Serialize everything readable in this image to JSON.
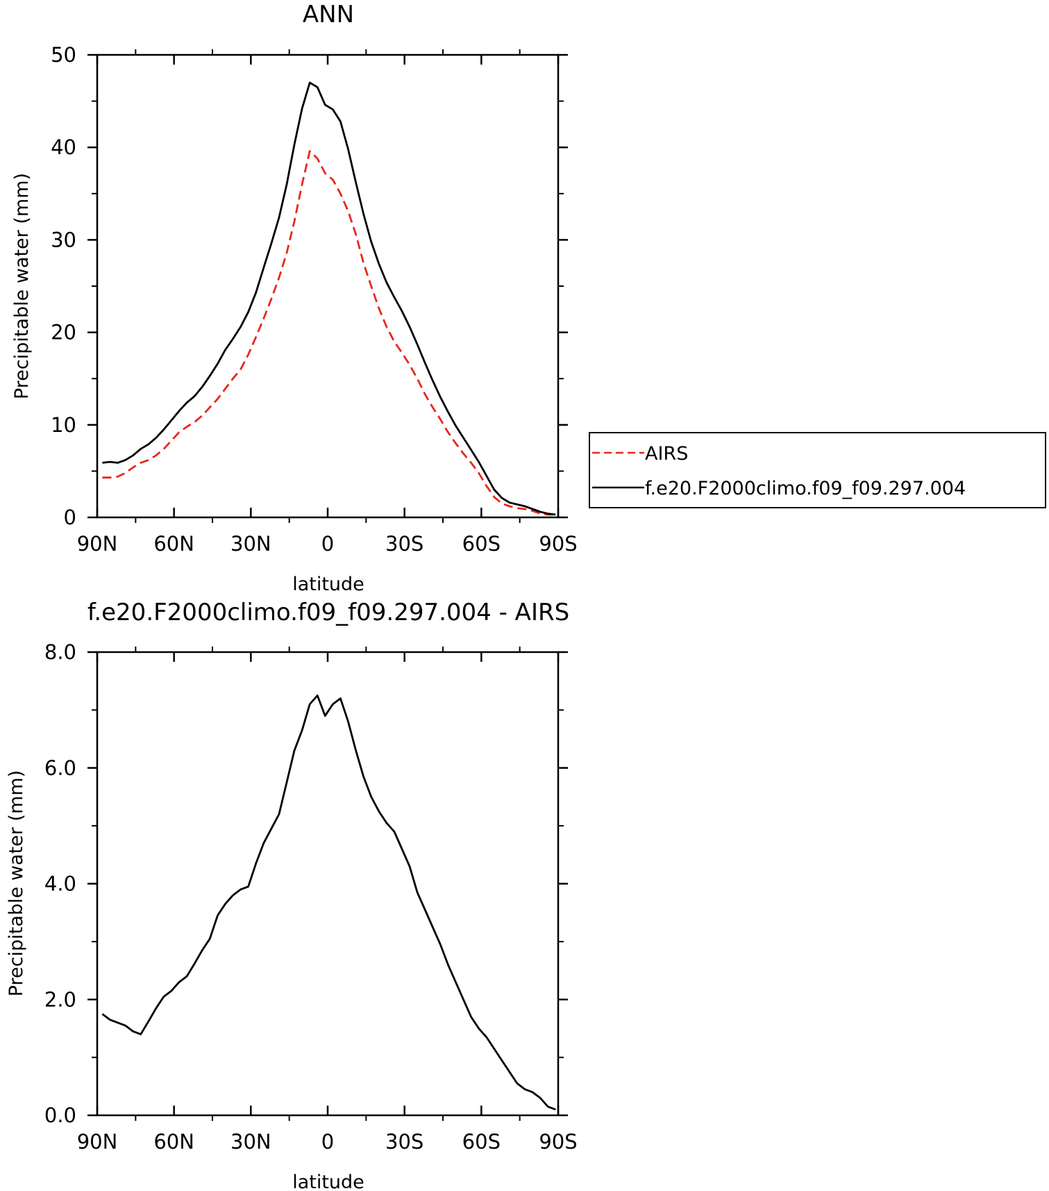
{
  "chart_data": [
    {
      "type": "line",
      "title": "ANN",
      "xlabel": "latitude",
      "ylabel": "Precipitable water (mm)",
      "xlim": [
        90,
        -90
      ],
      "ylim": [
        0,
        50
      ],
      "x_tick_values": [
        90,
        60,
        30,
        0,
        -30,
        -60,
        -90
      ],
      "x_tick_labels": [
        "90N",
        "60N",
        "30N",
        "0",
        "30S",
        "60S",
        "90S"
      ],
      "y_tick_values": [
        0,
        10,
        20,
        30,
        40,
        50
      ],
      "y_tick_labels": [
        "0",
        "10",
        "20",
        "30",
        "40",
        "50"
      ],
      "grid": false,
      "legend_position": "right",
      "x": [
        88,
        85,
        82,
        79,
        76,
        73,
        70,
        67,
        64,
        61,
        58,
        55,
        52,
        49,
        46,
        43,
        40,
        37,
        34,
        31,
        28,
        25,
        22,
        19,
        16,
        13,
        10,
        7,
        4,
        1,
        -2,
        -5,
        -8,
        -11,
        -14,
        -17,
        -20,
        -23,
        -26,
        -29,
        -32,
        -35,
        -38,
        -41,
        -44,
        -47,
        -50,
        -53,
        -56,
        -59,
        -62,
        -65,
        -68,
        -71,
        -74,
        -77,
        -80,
        -83,
        -86,
        -89
      ],
      "series": [
        {
          "name": "AIRS",
          "color": "#e8281e",
          "dash": "dashed",
          "values": [
            4.3,
            4.3,
            4.4,
            4.8,
            5.4,
            5.9,
            6.2,
            6.7,
            7.4,
            8.3,
            9.2,
            9.8,
            10.3,
            11.0,
            11.9,
            12.8,
            13.9,
            15.0,
            16.0,
            17.6,
            19.5,
            21.5,
            23.6,
            25.9,
            28.6,
            32.0,
            36.0,
            39.6,
            38.8,
            37.2,
            36.5,
            35.0,
            33.1,
            30.6,
            27.5,
            25.0,
            22.6,
            20.6,
            19.0,
            17.8,
            16.5,
            15.0,
            13.3,
            11.9,
            10.6,
            9.2,
            8.0,
            6.9,
            5.9,
            4.8,
            3.4,
            2.2,
            1.5,
            1.2,
            1.0,
            0.9,
            0.7,
            0.4,
            0.3,
            0.3
          ]
        },
        {
          "name": "f.e20.F2000climo.f09_f09.297.004",
          "color": "#000000",
          "dash": "solid",
          "values": [
            5.9,
            6.0,
            5.9,
            6.2,
            6.7,
            7.4,
            7.9,
            8.6,
            9.5,
            10.5,
            11.5,
            12.4,
            13.1,
            14.1,
            15.3,
            16.6,
            18.1,
            19.3,
            20.6,
            22.2,
            24.3,
            27.0,
            29.6,
            32.4,
            36.0,
            40.3,
            44.2,
            47.0,
            46.5,
            44.6,
            44.1,
            42.8,
            39.8,
            36.2,
            32.8,
            29.8,
            27.4,
            25.4,
            23.8,
            22.3,
            20.6,
            18.7,
            16.7,
            14.8,
            13.0,
            11.4,
            9.9,
            8.6,
            7.3,
            6.0,
            4.5,
            3.0,
            2.1,
            1.6,
            1.4,
            1.2,
            0.9,
            0.6,
            0.4,
            0.3
          ]
        }
      ]
    },
    {
      "type": "line",
      "title": "f.e20.F2000climo.f09_f09.297.004 - AIRS",
      "xlabel": "latitude",
      "ylabel": "Precipitable water (mm)",
      "xlim": [
        90,
        -90
      ],
      "ylim": [
        0,
        8
      ],
      "x_tick_values": [
        90,
        60,
        30,
        0,
        -30,
        -60,
        -90
      ],
      "x_tick_labels": [
        "90N",
        "60N",
        "30N",
        "0",
        "30S",
        "60S",
        "90S"
      ],
      "y_tick_values": [
        0,
        2,
        4,
        6,
        8
      ],
      "y_tick_labels": [
        "0.0",
        "2.0",
        "4.0",
        "6.0",
        "8.0"
      ],
      "grid": false,
      "x": [
        88,
        85,
        82,
        79,
        76,
        73,
        70,
        67,
        64,
        61,
        58,
        55,
        52,
        49,
        46,
        43,
        40,
        37,
        34,
        31,
        28,
        25,
        22,
        19,
        16,
        13,
        10,
        7,
        4,
        1,
        -2,
        -5,
        -8,
        -11,
        -14,
        -17,
        -20,
        -23,
        -26,
        -29,
        -32,
        -35,
        -38,
        -41,
        -44,
        -47,
        -50,
        -53,
        -56,
        -59,
        -62,
        -65,
        -68,
        -71,
        -74,
        -77,
        -80,
        -83,
        -86,
        -89
      ],
      "series": [
        {
          "color": "#000000",
          "dash": "solid",
          "values": [
            1.75,
            1.65,
            1.6,
            1.55,
            1.45,
            1.4,
            1.62,
            1.85,
            2.05,
            2.15,
            2.3,
            2.4,
            2.62,
            2.85,
            3.05,
            3.45,
            3.65,
            3.8,
            3.9,
            3.95,
            4.35,
            4.7,
            4.95,
            5.2,
            5.75,
            6.3,
            6.65,
            7.1,
            7.25,
            6.9,
            7.1,
            7.2,
            6.8,
            6.3,
            5.85,
            5.5,
            5.25,
            5.05,
            4.9,
            4.6,
            4.3,
            3.85,
            3.55,
            3.25,
            2.95,
            2.6,
            2.3,
            2.0,
            1.7,
            1.5,
            1.35,
            1.15,
            0.95,
            0.75,
            0.55,
            0.45,
            0.4,
            0.3,
            0.15,
            0.1
          ]
        }
      ]
    }
  ]
}
